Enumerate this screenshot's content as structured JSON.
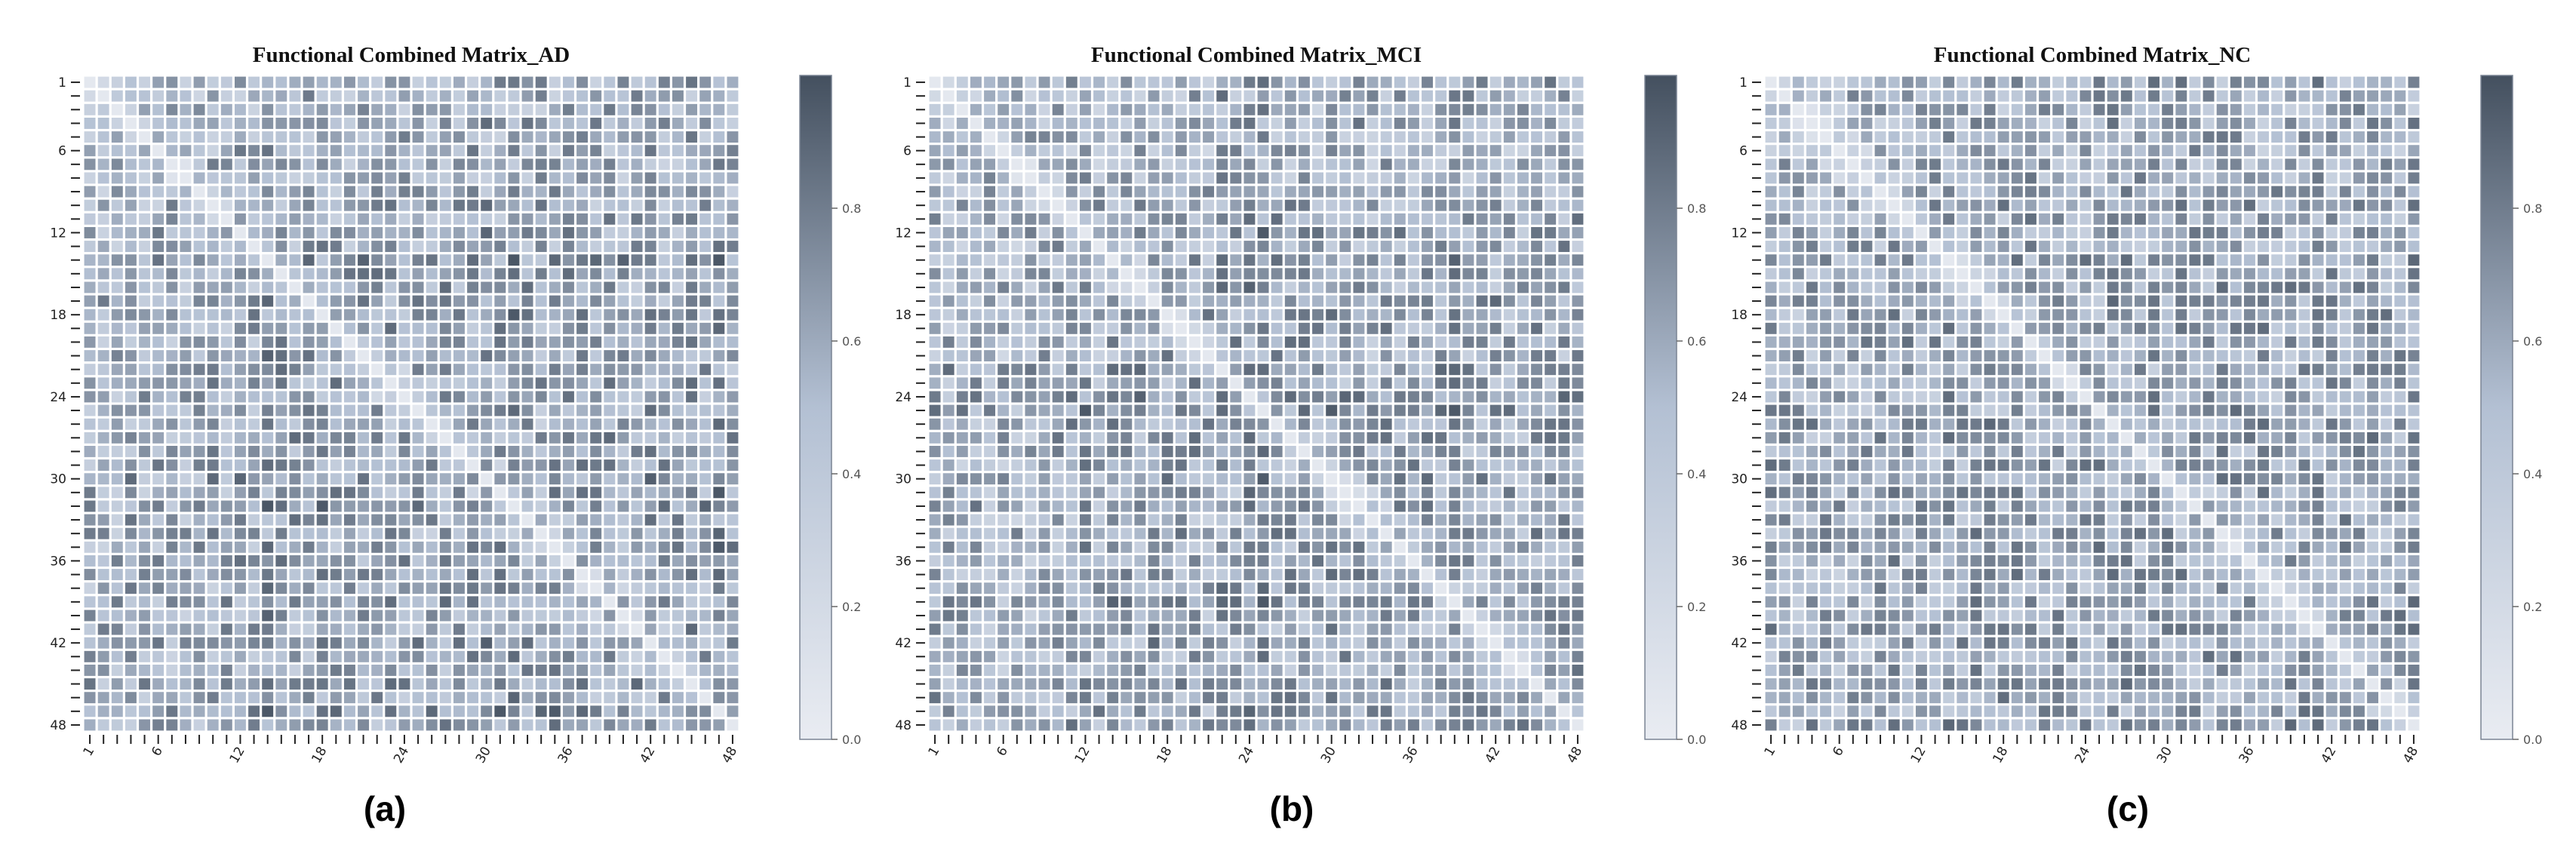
{
  "chart_data": [
    {
      "type": "heatmap",
      "title": "Functional Combined Matrix_AD",
      "caption": "(a)",
      "size": 48,
      "tick_labels": [
        "1",
        "6",
        "12",
        "18",
        "24",
        "30",
        "36",
        "42",
        "48"
      ],
      "tick_values": [
        1,
        6,
        12,
        18,
        24,
        30,
        36,
        42,
        48
      ],
      "value_range": [
        0.0,
        1.0
      ],
      "colorbar_ticks": [
        "0.0",
        "0.2",
        "0.4",
        "0.6",
        "0.8"
      ],
      "colorbar_values": [
        0.0,
        0.2,
        0.4,
        0.6,
        0.8
      ],
      "colormap": [
        "#e9ecf2",
        "#b3c0d3",
        "#44505f"
      ],
      "diagonal_value": 0.05,
      "row_means": [
        0.55,
        0.5,
        0.5,
        0.55,
        0.52,
        0.5,
        0.48,
        0.5,
        0.52,
        0.6,
        0.55,
        0.6,
        0.5,
        0.7,
        0.62,
        0.6,
        0.58,
        0.65,
        0.6,
        0.62,
        0.6,
        0.58,
        0.6,
        0.55,
        0.62,
        0.58,
        0.6,
        0.55,
        0.62,
        0.7,
        0.6,
        0.75,
        0.6,
        0.55,
        0.6,
        0.62,
        0.6,
        0.55,
        0.65,
        0.6,
        0.58,
        0.62,
        0.6,
        0.55,
        0.65,
        0.6,
        0.78,
        0.65
      ],
      "seed": 11
    },
    {
      "type": "heatmap",
      "title": "Functional Combined Matrix_MCI",
      "caption": "(b)",
      "size": 48,
      "tick_labels": [
        "1",
        "6",
        "12",
        "18",
        "24",
        "30",
        "36",
        "42",
        "48"
      ],
      "tick_values": [
        1,
        6,
        12,
        18,
        24,
        30,
        36,
        42,
        48
      ],
      "value_range": [
        0.0,
        1.0
      ],
      "colorbar_ticks": [
        "0.0",
        "0.2",
        "0.4",
        "0.6",
        "0.8"
      ],
      "colorbar_values": [
        0.0,
        0.2,
        0.4,
        0.6,
        0.8
      ],
      "colormap": [
        "#e9ecf2",
        "#b3c0d3",
        "#44505f"
      ],
      "diagonal_value": 0.05,
      "row_means": [
        0.55,
        0.5,
        0.48,
        0.55,
        0.5,
        0.45,
        0.45,
        0.5,
        0.55,
        0.6,
        0.58,
        0.62,
        0.55,
        0.6,
        0.6,
        0.58,
        0.62,
        0.6,
        0.58,
        0.6,
        0.55,
        0.7,
        0.6,
        0.72,
        0.75,
        0.6,
        0.62,
        0.58,
        0.6,
        0.62,
        0.58,
        0.6,
        0.55,
        0.6,
        0.58,
        0.55,
        0.6,
        0.58,
        0.72,
        0.6,
        0.58,
        0.62,
        0.6,
        0.58,
        0.6,
        0.62,
        0.6,
        0.65
      ],
      "seed": 23
    },
    {
      "type": "heatmap",
      "title": "Functional Combined Matrix_NC",
      "caption": "(c)",
      "size": 48,
      "tick_labels": [
        "1",
        "6",
        "12",
        "18",
        "24",
        "30",
        "36",
        "42",
        "48"
      ],
      "tick_values": [
        1,
        6,
        12,
        18,
        24,
        30,
        36,
        42,
        48
      ],
      "value_range": [
        0.0,
        1.0
      ],
      "colorbar_ticks": [
        "0.0",
        "0.2",
        "0.4",
        "0.6",
        "0.8"
      ],
      "colorbar_values": [
        0.0,
        0.2,
        0.4,
        0.6,
        0.8
      ],
      "colormap": [
        "#e9ecf2",
        "#b3c0d3",
        "#44505f"
      ],
      "diagonal_value": 0.05,
      "row_means": [
        0.6,
        0.55,
        0.5,
        0.55,
        0.52,
        0.5,
        0.5,
        0.52,
        0.55,
        0.6,
        0.58,
        0.6,
        0.58,
        0.62,
        0.6,
        0.6,
        0.62,
        0.6,
        0.6,
        0.62,
        0.6,
        0.58,
        0.6,
        0.58,
        0.6,
        0.62,
        0.6,
        0.58,
        0.6,
        0.62,
        0.6,
        0.6,
        0.58,
        0.6,
        0.62,
        0.6,
        0.6,
        0.58,
        0.6,
        0.62,
        0.6,
        0.58,
        0.6,
        0.6,
        0.62,
        0.6,
        0.62,
        0.65
      ],
      "seed": 37
    }
  ]
}
